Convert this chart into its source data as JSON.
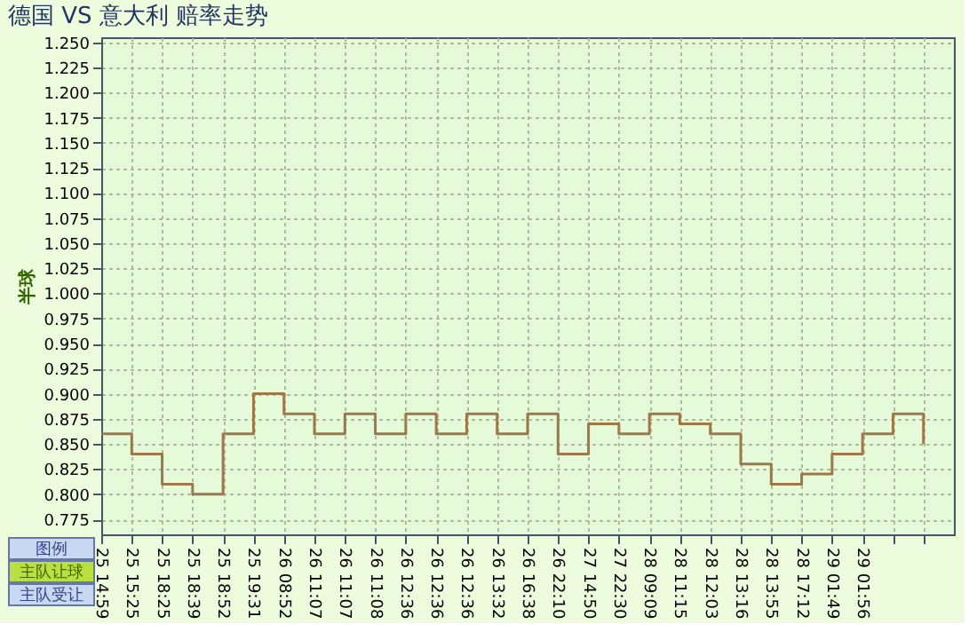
{
  "chart_data": {
    "type": "step",
    "title": "德国 VS 意大利 赔率走势",
    "ylabel": "半球",
    "categories": [
      "25 14:59",
      "25 15:25",
      "25 18:25",
      "25 18:39",
      "25 18:52",
      "25 19:31",
      "26 08:52",
      "26 11:07",
      "26 11:07",
      "26 11:08",
      "26 12:36",
      "26 12:36",
      "26 12:36",
      "26 13:32",
      "26 16:38",
      "26 22:10",
      "27 14:50",
      "27 22:30",
      "28 09:09",
      "28 11:15",
      "28 12:03",
      "28 13:16",
      "28 13:55",
      "28 17:12",
      "29 01:49",
      "29 01:56",
      null,
      null
    ],
    "series": [
      {
        "color": "#a07848",
        "values": [
          0.86,
          0.84,
          0.81,
          0.8,
          0.86,
          0.9,
          0.88,
          0.86,
          0.88,
          0.86,
          0.88,
          0.86,
          0.88,
          0.86,
          0.88,
          0.84,
          0.87,
          0.86,
          0.88,
          0.87,
          0.86,
          0.83,
          0.81,
          0.82,
          0.84,
          0.86,
          0.88,
          0.85
        ]
      }
    ],
    "ylim": [
      0.76,
      1.255
    ],
    "yticks": [
      0.775,
      {
        "value": 0.8,
        "label": "0.800"
      },
      0.825,
      {
        "value": 0.85,
        "label": "0.850"
      },
      0.875,
      {
        "value": 0.9,
        "label": "0.900"
      },
      0.925,
      {
        "value": 0.95,
        "label": "0.950"
      },
      0.975,
      {
        "value": 1.0,
        "label": "1.000"
      },
      1.025,
      {
        "value": 1.05,
        "label": "1.050"
      },
      1.075,
      {
        "value": 1.1,
        "label": "1.100"
      },
      1.125,
      {
        "value": 1.15,
        "label": "1.150"
      },
      1.175,
      {
        "value": 1.2,
        "label": "1.200"
      },
      1.225,
      {
        "value": 1.25,
        "label": "1.250"
      }
    ],
    "grid": true,
    "line_style": "solid",
    "marker": "none",
    "annotations": [
      "图例",
      "主队让球",
      "主队受让"
    ]
  }
}
